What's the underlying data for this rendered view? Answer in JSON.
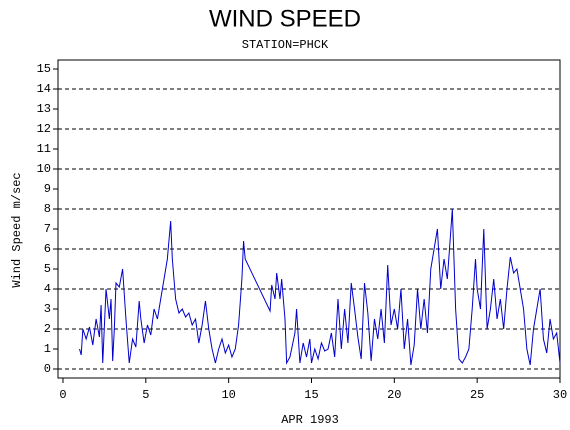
{
  "chart_data": {
    "type": "line",
    "title": "WIND SPEED",
    "subtitle": "STATION=PHCK",
    "xlabel": "APR 1993",
    "ylabel": "Wind Speed m/sec",
    "xlim": [
      -0.3,
      30
    ],
    "ylim": [
      -0.45,
      15.45
    ],
    "xticks": [
      0,
      5,
      10,
      15,
      20,
      25,
      30
    ],
    "yticks": [
      0,
      1,
      2,
      3,
      4,
      5,
      6,
      7,
      8,
      9,
      10,
      11,
      12,
      13,
      14,
      15
    ],
    "grid_values": [
      0,
      2,
      4,
      6,
      8,
      10,
      12,
      14
    ],
    "color": "#0000cc",
    "x": [
      1.0,
      1.1,
      1.2,
      1.4,
      1.6,
      1.8,
      2.0,
      2.2,
      2.3,
      2.4,
      2.6,
      2.8,
      2.9,
      3.0,
      3.1,
      3.2,
      3.4,
      3.6,
      3.8,
      4.0,
      4.2,
      4.4,
      4.6,
      4.7,
      4.9,
      5.1,
      5.3,
      5.5,
      5.7,
      5.9,
      6.1,
      6.3,
      6.5,
      6.6,
      6.8,
      7.0,
      7.2,
      7.4,
      7.6,
      7.8,
      8.0,
      8.2,
      8.4,
      8.6,
      8.8,
      9.0,
      9.2,
      9.4,
      9.6,
      9.8,
      10.0,
      10.2,
      10.4,
      10.6,
      10.8,
      10.9,
      11.0,
      12.5,
      12.6,
      12.8,
      12.9,
      13.1,
      13.2,
      13.4,
      13.5,
      13.7,
      13.8,
      14.0,
      14.1,
      14.3,
      14.5,
      14.7,
      14.9,
      15.0,
      15.2,
      15.4,
      15.6,
      15.8,
      16.0,
      16.2,
      16.4,
      16.6,
      16.8,
      17.0,
      17.2,
      17.4,
      17.6,
      17.8,
      18.0,
      18.2,
      18.4,
      18.6,
      18.8,
      19.0,
      19.2,
      19.4,
      19.6,
      19.8,
      20.0,
      20.2,
      20.4,
      20.6,
      20.8,
      21.0,
      21.2,
      21.4,
      21.6,
      21.8,
      22.0,
      22.2,
      22.4,
      22.6,
      22.8,
      23.0,
      23.2,
      23.4,
      23.5,
      23.7,
      23.9,
      24.1,
      24.3,
      24.5,
      24.7,
      24.9,
      25.0,
      25.2,
      25.4,
      25.6,
      25.8,
      26.0,
      26.2,
      26.4,
      26.6,
      26.8,
      27.0,
      27.2,
      27.4,
      27.6,
      27.8,
      28.0,
      28.2,
      28.4,
      28.6,
      28.8,
      29.0,
      29.2,
      29.4,
      29.6,
      29.8,
      30.0
    ],
    "values": [
      1.0,
      0.7,
      2.0,
      1.5,
      2.1,
      1.2,
      2.5,
      1.6,
      3.2,
      0.3,
      4.0,
      2.5,
      3.5,
      0.4,
      2.0,
      4.3,
      4.1,
      5.0,
      2.5,
      0.3,
      1.5,
      1.1,
      3.4,
      2.5,
      1.3,
      2.2,
      1.7,
      3.0,
      2.5,
      3.5,
      4.5,
      5.5,
      7.4,
      5.5,
      3.5,
      2.8,
      3.0,
      2.6,
      2.8,
      2.2,
      2.5,
      1.3,
      2.2,
      3.4,
      2.0,
      1.0,
      0.3,
      1.0,
      1.5,
      0.8,
      1.2,
      0.6,
      1.0,
      2.2,
      4.5,
      6.4,
      5.5,
      2.9,
      4.2,
      3.5,
      4.8,
      3.5,
      4.5,
      2.5,
      0.3,
      0.6,
      1.0,
      1.8,
      3.0,
      0.3,
      1.3,
      0.6,
      1.5,
      0.3,
      1.0,
      0.5,
      1.3,
      0.9,
      1.0,
      1.8,
      0.6,
      3.5,
      1.0,
      3.0,
      1.3,
      4.3,
      3.0,
      1.6,
      0.5,
      4.3,
      2.8,
      0.4,
      2.5,
      1.5,
      3.0,
      1.3,
      5.2,
      2.2,
      3.0,
      2.0,
      4.0,
      1.0,
      2.5,
      0.2,
      1.2,
      4.0,
      2.0,
      3.5,
      1.8,
      5.0,
      6.0,
      7.0,
      4.0,
      5.5,
      4.5,
      6.8,
      8.0,
      3.0,
      0.5,
      0.3,
      0.6,
      1.0,
      3.0,
      5.5,
      4.0,
      3.0,
      7.0,
      2.0,
      3.0,
      4.5,
      2.5,
      3.5,
      2.0,
      4.0,
      5.6,
      4.8,
      5.0,
      4.0,
      3.0,
      1.0,
      0.2,
      2.0,
      3.0,
      4.0,
      1.5,
      0.8,
      2.5,
      1.5,
      1.8,
      0.3
    ]
  }
}
